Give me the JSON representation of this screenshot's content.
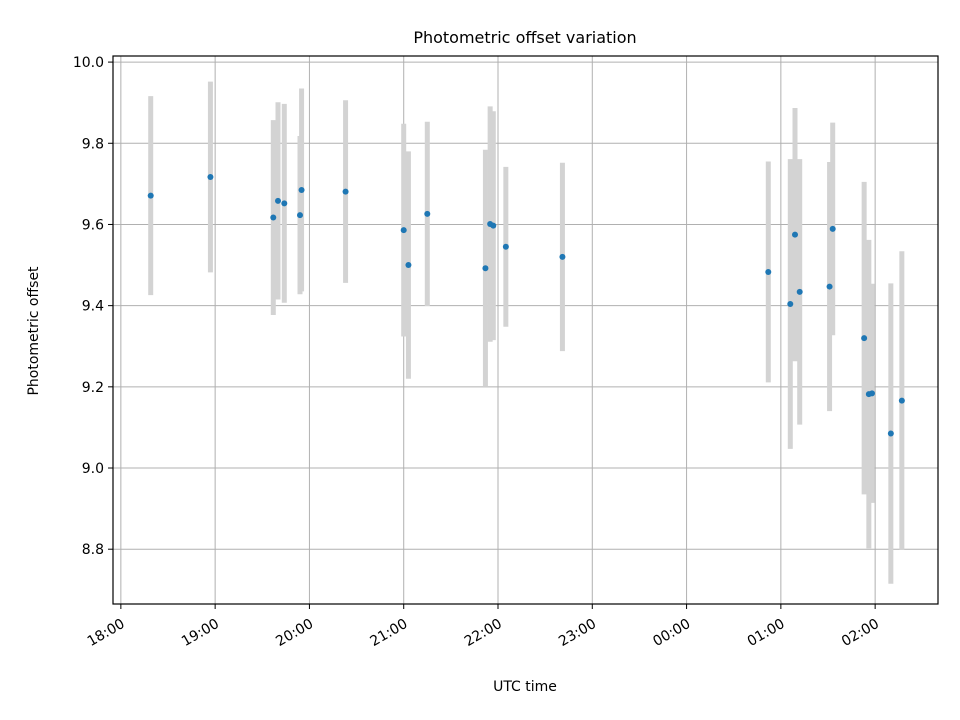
{
  "chart_data": {
    "type": "scatter",
    "title": "Photometric offset variation",
    "xlabel": "UTC time",
    "ylabel": "Photometric offset",
    "x_range": [
      "17:55",
      "02:40"
    ],
    "ylim": [
      8.665,
      10.015
    ],
    "x_ticks": [
      "18:00",
      "19:00",
      "20:00",
      "21:00",
      "22:00",
      "23:00",
      "00:00",
      "01:00",
      "02:00"
    ],
    "y_ticks": [
      "8.8",
      "9.0",
      "9.2",
      "9.4",
      "9.6",
      "9.8",
      "10.0"
    ],
    "grid": true,
    "error_bar_color": "#d3d3d3",
    "point_color": "#1f77b4",
    "series": [
      {
        "points": [
          {
            "x": "18:19",
            "y": 9.671,
            "err": 0.245
          },
          {
            "x": "18:57",
            "y": 9.717,
            "err": 0.235
          },
          {
            "x": "19:37",
            "y": 9.617,
            "err": 0.24
          },
          {
            "x": "19:40",
            "y": 9.658,
            "err": 0.243
          },
          {
            "x": "19:44",
            "y": 9.652,
            "err": 0.245
          },
          {
            "x": "19:54",
            "y": 9.623,
            "err": 0.195
          },
          {
            "x": "19:55",
            "y": 9.685,
            "err": 0.25
          },
          {
            "x": "20:23",
            "y": 9.681,
            "err": 0.225
          },
          {
            "x": "21:00",
            "y": 9.586,
            "err": 0.262
          },
          {
            "x": "21:03",
            "y": 9.5,
            "err": 0.28
          },
          {
            "x": "21:15",
            "y": 9.626,
            "err": 0.227
          },
          {
            "x": "21:52",
            "y": 9.492,
            "err": 0.292
          },
          {
            "x": "21:55",
            "y": 9.601,
            "err": 0.29
          },
          {
            "x": "21:57",
            "y": 9.597,
            "err": 0.282
          },
          {
            "x": "22:05",
            "y": 9.545,
            "err": 0.197
          },
          {
            "x": "22:41",
            "y": 9.52,
            "err": 0.232
          },
          {
            "x": "00:52",
            "y": 9.483,
            "err": 0.272
          },
          {
            "x": "01:06",
            "y": 9.404,
            "err": 0.357
          },
          {
            "x": "01:09",
            "y": 9.575,
            "err": 0.312
          },
          {
            "x": "01:12",
            "y": 9.434,
            "err": 0.327
          },
          {
            "x": "01:31",
            "y": 9.447,
            "err": 0.307
          },
          {
            "x": "01:33",
            "y": 9.589,
            "err": 0.262
          },
          {
            "x": "01:53",
            "y": 9.32,
            "err": 0.385
          },
          {
            "x": "01:56",
            "y": 9.182,
            "err": 0.38
          },
          {
            "x": "01:58",
            "y": 9.184,
            "err": 0.27
          },
          {
            "x": "02:10",
            "y": 9.085,
            "err": 0.37
          },
          {
            "x": "02:17",
            "y": 9.166,
            "err": 0.368
          }
        ]
      }
    ]
  }
}
